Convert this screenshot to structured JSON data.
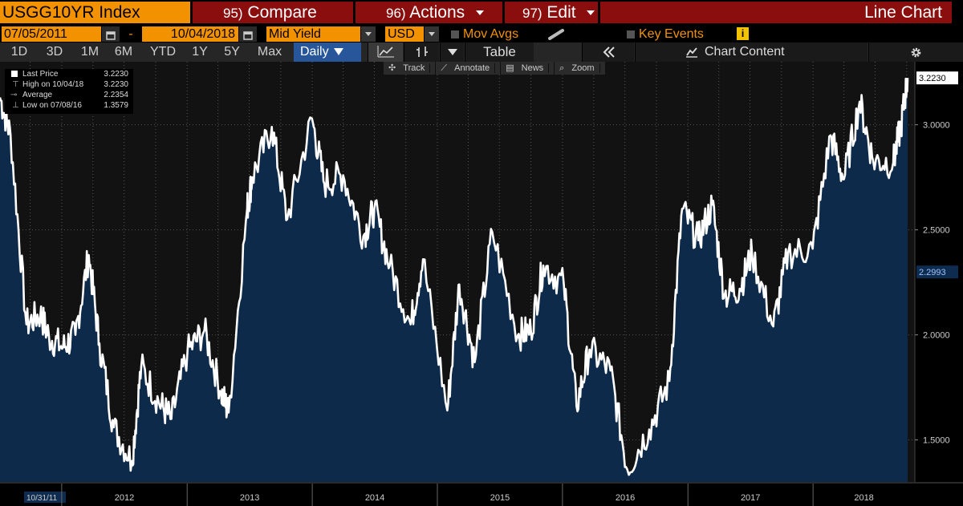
{
  "header": {
    "ticker": "USGG10YR Index",
    "compare": {
      "num": "95)",
      "label": "Compare"
    },
    "actions": {
      "num": "96)",
      "label": "Actions"
    },
    "edit": {
      "num": "97)",
      "label": "Edit"
    },
    "chart_type": "Line Chart"
  },
  "controls": {
    "start_date": "07/05/2011",
    "date_sep": "-",
    "end_date": "10/04/2018",
    "field": "Mid Yield",
    "currency": "USD",
    "mov_avgs": "Mov Avgs",
    "key_events": "Key Events",
    "info": "i"
  },
  "ranges": [
    "1D",
    "3D",
    "1M",
    "6M",
    "YTD",
    "1Y",
    "5Y",
    "Max"
  ],
  "periodicity": "Daily",
  "table_label": "Table",
  "chart_content_label": "Chart Content",
  "subtools": {
    "track": "Track",
    "annotate": "Annotate",
    "news": "News",
    "zoom": "Zoom"
  },
  "legend": {
    "last_label": "Last Price",
    "last_value": "3.2230",
    "high_label": "High on 10/04/18",
    "high_value": "3.2230",
    "avg_label": "Average",
    "avg_value": "2.2354",
    "low_label": "Low on 07/08/16",
    "low_value": "1.3579"
  },
  "colors": {
    "accent": "#f39200",
    "cmd_bg": "#8b0e0e",
    "fill": "#0d2a4a",
    "line": "#ffffff",
    "selected": "#27579a"
  },
  "chart_data": {
    "type": "area",
    "series": [
      {
        "x": [
          "2011-07-05",
          "2011-08-05",
          "2011-09-20",
          "2011-10-31",
          "2011-11-25",
          "2012-01-05",
          "2012-02-10",
          "2012-03-20",
          "2012-04-20",
          "2012-06-01",
          "2012-07-24",
          "2012-08-20",
          "2012-10-10",
          "2012-11-16",
          "2013-01-02",
          "2013-02-20",
          "2013-04-10",
          "2013-05-02",
          "2013-06-25",
          "2013-07-10",
          "2013-09-05",
          "2013-10-20",
          "2013-12-31",
          "2014-02-05",
          "2014-04-01",
          "2014-05-30",
          "2014-07-01",
          "2014-08-15",
          "2014-10-15",
          "2014-11-20",
          "2015-01-30",
          "2015-03-06",
          "2015-04-20",
          "2015-06-10",
          "2015-08-24",
          "2015-10-01",
          "2015-11-06",
          "2016-01-05",
          "2016-02-11",
          "2016-03-20",
          "2016-05-20",
          "2016-07-08",
          "2016-09-10",
          "2016-11-08",
          "2016-12-15",
          "2017-01-31",
          "2017-03-13",
          "2017-04-18",
          "2017-06-01",
          "2017-07-07",
          "2017-09-07",
          "2017-10-20",
          "2017-12-31",
          "2018-02-21",
          "2018-04-01",
          "2018-05-17",
          "2018-06-25",
          "2018-08-23",
          "2018-09-15",
          "2018-10-04"
        ],
        "values": [
          3.13,
          2.95,
          2.05,
          2.1,
          1.99,
          1.94,
          2.0,
          2.38,
          1.96,
          1.56,
          1.4,
          1.85,
          1.68,
          1.6,
          1.92,
          2.02,
          1.73,
          1.63,
          2.6,
          2.75,
          2.99,
          2.55,
          3.03,
          2.72,
          2.76,
          2.47,
          2.6,
          2.33,
          2.05,
          2.36,
          1.64,
          2.24,
          1.87,
          2.49,
          2.0,
          2.02,
          2.33,
          2.24,
          1.66,
          1.93,
          1.83,
          1.36,
          1.55,
          1.78,
          2.6,
          2.45,
          2.62,
          2.19,
          2.22,
          2.39,
          2.04,
          2.39,
          2.41,
          2.95,
          2.74,
          3.11,
          2.83,
          2.82,
          3.0,
          3.223
        ]
      }
    ],
    "ylim": [
      1.3,
      3.3
    ],
    "yticks": [
      "3.0000",
      "2.5000",
      "2.0000",
      "1.5000"
    ],
    "last_value_label": "3.2230",
    "mid_marker_label": "2.2993",
    "xticks": [
      "10/31/11",
      "2012",
      "2013",
      "2014",
      "2015",
      "2016",
      "2017",
      "2018"
    ],
    "grid": true
  }
}
